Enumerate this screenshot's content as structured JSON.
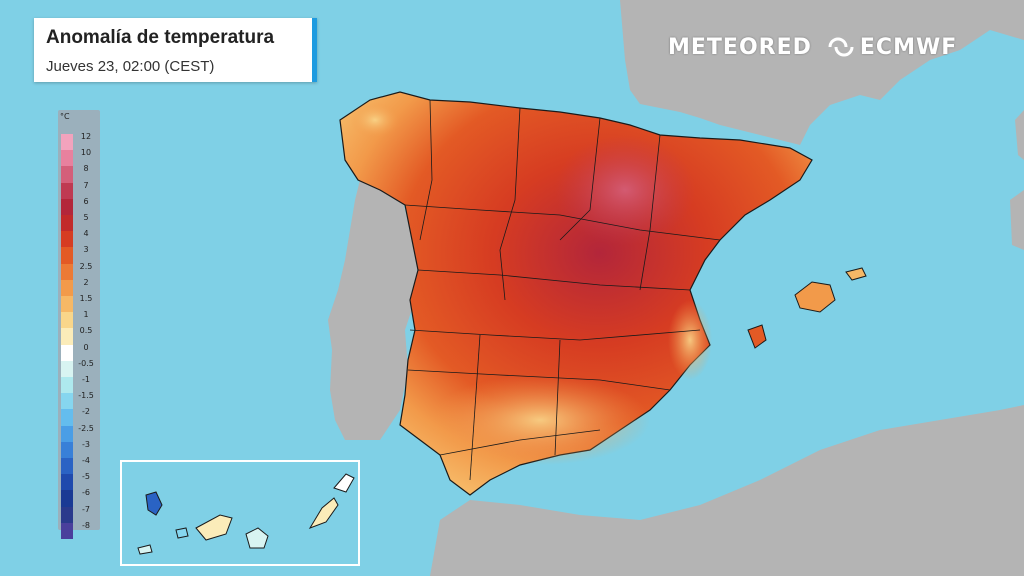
{
  "title": {
    "main": "Anomalía de temperatura",
    "subtitle": "Jueves 23, 02:00 (CEST)"
  },
  "logos": {
    "brand1": "METEORED",
    "brand2": "ECMWF"
  },
  "legend": {
    "unit": "°C",
    "entries": [
      {
        "label": "12",
        "color": "#f2a3bd"
      },
      {
        "label": "10",
        "color": "#e8819e"
      },
      {
        "label": "8",
        "color": "#d45f7a"
      },
      {
        "label": "7",
        "color": "#bf3a52"
      },
      {
        "label": "6",
        "color": "#b3263a"
      },
      {
        "label": "5",
        "color": "#c22a2a"
      },
      {
        "label": "4",
        "color": "#d63c22"
      },
      {
        "label": "3",
        "color": "#e35a25"
      },
      {
        "label": "2.5",
        "color": "#ec7a35"
      },
      {
        "label": "2",
        "color": "#f29a4a"
      },
      {
        "label": "1.5",
        "color": "#f6b866"
      },
      {
        "label": "1",
        "color": "#f9d68a"
      },
      {
        "label": "0.5",
        "color": "#fbecb9"
      },
      {
        "label": "0",
        "color": "#ffffff"
      },
      {
        "label": "-0.5",
        "color": "#d8f4f2"
      },
      {
        "label": "-1",
        "color": "#aee9ee"
      },
      {
        "label": "-1.5",
        "color": "#86d6ef"
      },
      {
        "label": "-2",
        "color": "#64bdee"
      },
      {
        "label": "-2.5",
        "color": "#4a9ee6"
      },
      {
        "label": "-3",
        "color": "#3880d8"
      },
      {
        "label": "-4",
        "color": "#2a63c4"
      },
      {
        "label": "-5",
        "color": "#1f4aad"
      },
      {
        "label": "-6",
        "color": "#1a3a94"
      },
      {
        "label": "-7",
        "color": "#2a3a8c"
      },
      {
        "label": "-8",
        "color": "#4a3f9c"
      }
    ]
  },
  "colors": {
    "sea": "#7fd0e6",
    "land_outside": "#b4b4b4",
    "title_accent": "#1e9be0"
  }
}
